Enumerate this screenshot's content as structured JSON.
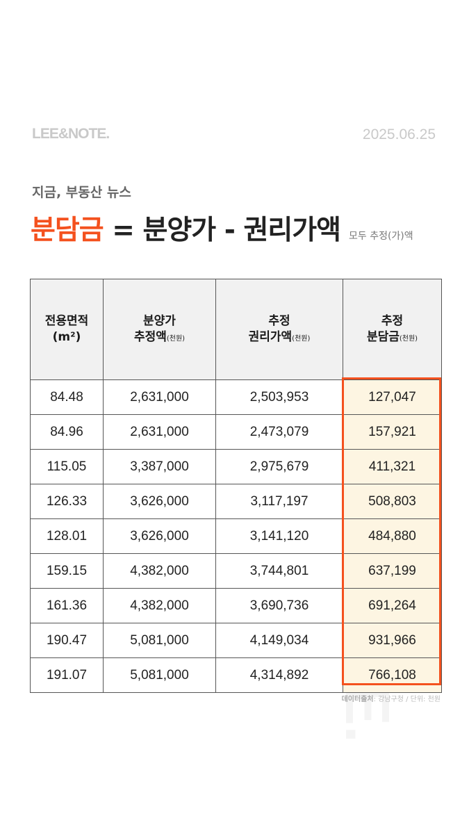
{
  "brand": {
    "logo": "LEE&NOTE.",
    "date": "2025.06.25"
  },
  "header": {
    "subtitle": "지금, 부동산 뉴스",
    "headline_accent": "분담금",
    "headline_rest": " = 분양가 - 권리가액",
    "headline_note": "모두 추정(가)액"
  },
  "table": {
    "headers": [
      {
        "line1": "전용면적",
        "line2": "(m²)",
        "unit": ""
      },
      {
        "line1": "분양가",
        "line2": "추정액",
        "unit": "(천원)"
      },
      {
        "line1": "추정",
        "line2": "권리가액",
        "unit": "(천원)"
      },
      {
        "line1": "추정",
        "line2": "분담금",
        "unit": "(천원)"
      }
    ],
    "rows": [
      [
        "84.48",
        "2,631,000",
        "2,503,953",
        "127,047"
      ],
      [
        "84.96",
        "2,631,000",
        "2,473,079",
        "157,921"
      ],
      [
        "115.05",
        "3,387,000",
        "2,975,679",
        "411,321"
      ],
      [
        "126.33",
        "3,626,000",
        "3,117,197",
        "508,803"
      ],
      [
        "128.01",
        "3,626,000",
        "3,141,120",
        "484,880"
      ],
      [
        "159.15",
        "4,382,000",
        "3,744,801",
        "637,199"
      ],
      [
        "161.36",
        "4,382,000",
        "3,690,736",
        "691,264"
      ],
      [
        "190.47",
        "5,081,000",
        "4,149,034",
        "931,966"
      ],
      [
        "191.07",
        "5,081,000",
        "4,314,892",
        "766,108"
      ]
    ]
  },
  "source": {
    "label": "데이터출처",
    "text": ": 강남구청 / 단위: 천원"
  },
  "colors": {
    "accent": "#f4511e",
    "highlight_bg": "#fdf5e2",
    "header_bg": "#f1f1f1"
  }
}
